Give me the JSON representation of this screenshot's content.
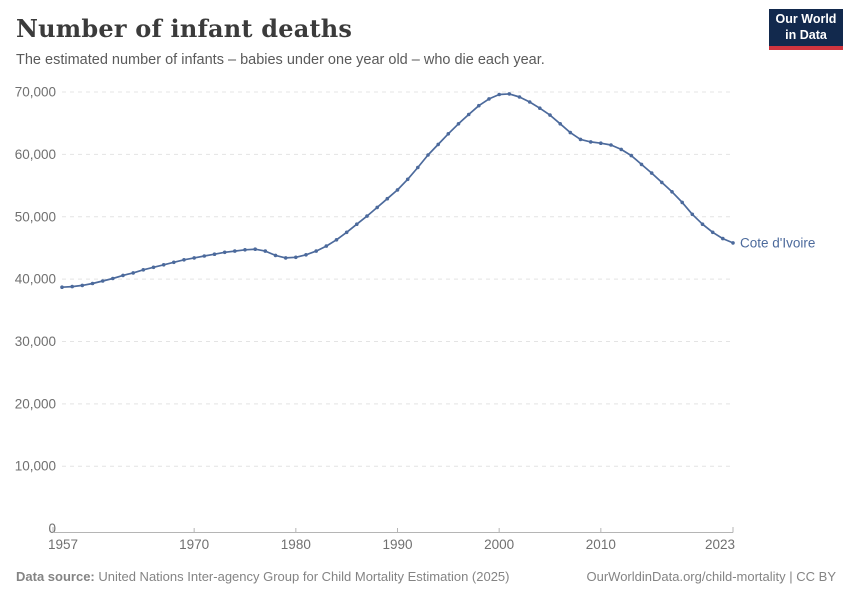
{
  "header": {
    "title": "Number of infant deaths",
    "subtitle": "The estimated number of infants – babies under one year old – who die each year.",
    "logo": {
      "line1": "Our World",
      "line2": "in Data"
    }
  },
  "chart_data": {
    "type": "line",
    "title": "Number of infant deaths",
    "xlabel": "",
    "ylabel": "",
    "xlim": [
      1957,
      2023
    ],
    "ylim": [
      0,
      70000
    ],
    "grid": "horizontal-dashed",
    "legend_position": "end-of-line-label",
    "x_ticks": [
      1957,
      1970,
      1980,
      1990,
      2000,
      2010,
      2023
    ],
    "y_ticks": [
      0,
      10000,
      20000,
      30000,
      40000,
      50000,
      60000,
      70000
    ],
    "y_tick_labels": [
      "0",
      "10,000",
      "20,000",
      "30,000",
      "40,000",
      "50,000",
      "60,000",
      "70,000"
    ],
    "series": [
      {
        "name": "Cote d'Ivoire",
        "color": "#4C6A9C",
        "x": [
          1957,
          1958,
          1959,
          1960,
          1961,
          1962,
          1963,
          1964,
          1965,
          1966,
          1967,
          1968,
          1969,
          1970,
          1971,
          1972,
          1973,
          1974,
          1975,
          1976,
          1977,
          1978,
          1979,
          1980,
          1981,
          1982,
          1983,
          1984,
          1985,
          1986,
          1987,
          1988,
          1989,
          1990,
          1991,
          1992,
          1993,
          1994,
          1995,
          1996,
          1997,
          1998,
          1999,
          2000,
          2001,
          2002,
          2003,
          2004,
          2005,
          2006,
          2007,
          2008,
          2009,
          2010,
          2011,
          2012,
          2013,
          2014,
          2015,
          2016,
          2017,
          2018,
          2019,
          2020,
          2021,
          2022,
          2023
        ],
        "values": [
          38700,
          38800,
          39000,
          39300,
          39700,
          40100,
          40600,
          41000,
          41500,
          41900,
          42300,
          42700,
          43100,
          43400,
          43700,
          44000,
          44300,
          44500,
          44700,
          44800,
          44500,
          43800,
          43400,
          43500,
          43900,
          44500,
          45300,
          46300,
          47500,
          48800,
          50100,
          51500,
          52900,
          54300,
          56000,
          57900,
          59900,
          61600,
          63300,
          64900,
          66400,
          67800,
          68900,
          69600,
          69700,
          69200,
          68400,
          67400,
          66300,
          64900,
          63500,
          62400,
          62000,
          61800,
          61500,
          60800,
          59800,
          58400,
          57000,
          55500,
          54000,
          52300,
          50400,
          48800,
          47500,
          46500,
          45800
        ]
      }
    ]
  },
  "footer": {
    "source_label": "Data source:",
    "source_text": " United Nations Inter-agency Group for Child Mortality Estimation (2025)",
    "link_text": "OurWorldinData.org/child-mortality | CC BY"
  },
  "colors": {
    "line": "#4C6A9C",
    "entity_label": "#4C6A9C",
    "grid": "#e4e4e4",
    "axis": "#b5b5b5",
    "tick_label": "#707070",
    "logo_bg": "#12294d",
    "logo_accent": "#d0353f"
  }
}
